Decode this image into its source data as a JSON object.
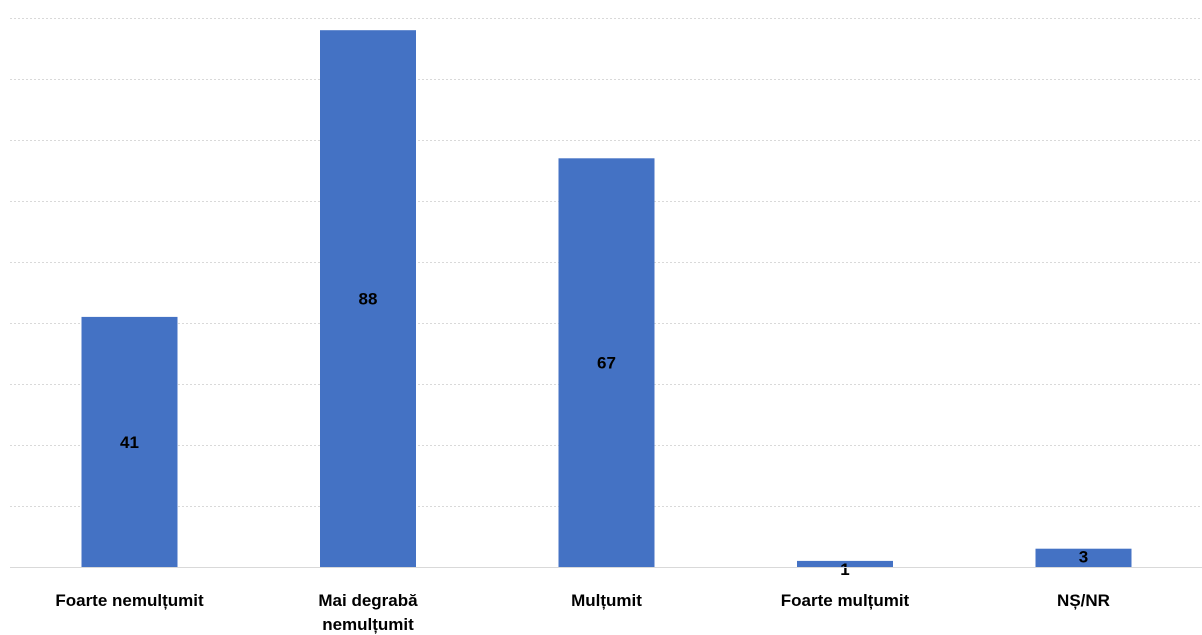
{
  "chart_data": {
    "type": "bar",
    "categories": [
      [
        "Foarte nemulțumit"
      ],
      [
        "Mai degrabă",
        "nemulțumit"
      ],
      [
        "Mulțumit"
      ],
      [
        "Foarte mulțumit"
      ],
      [
        "NȘ/NR"
      ]
    ],
    "values": [
      41,
      88,
      67,
      1,
      3
    ],
    "ylim": [
      0,
      90
    ],
    "grid": true,
    "bar_color": "#4472c4",
    "gridline_count": 9,
    "data_labels": true
  }
}
